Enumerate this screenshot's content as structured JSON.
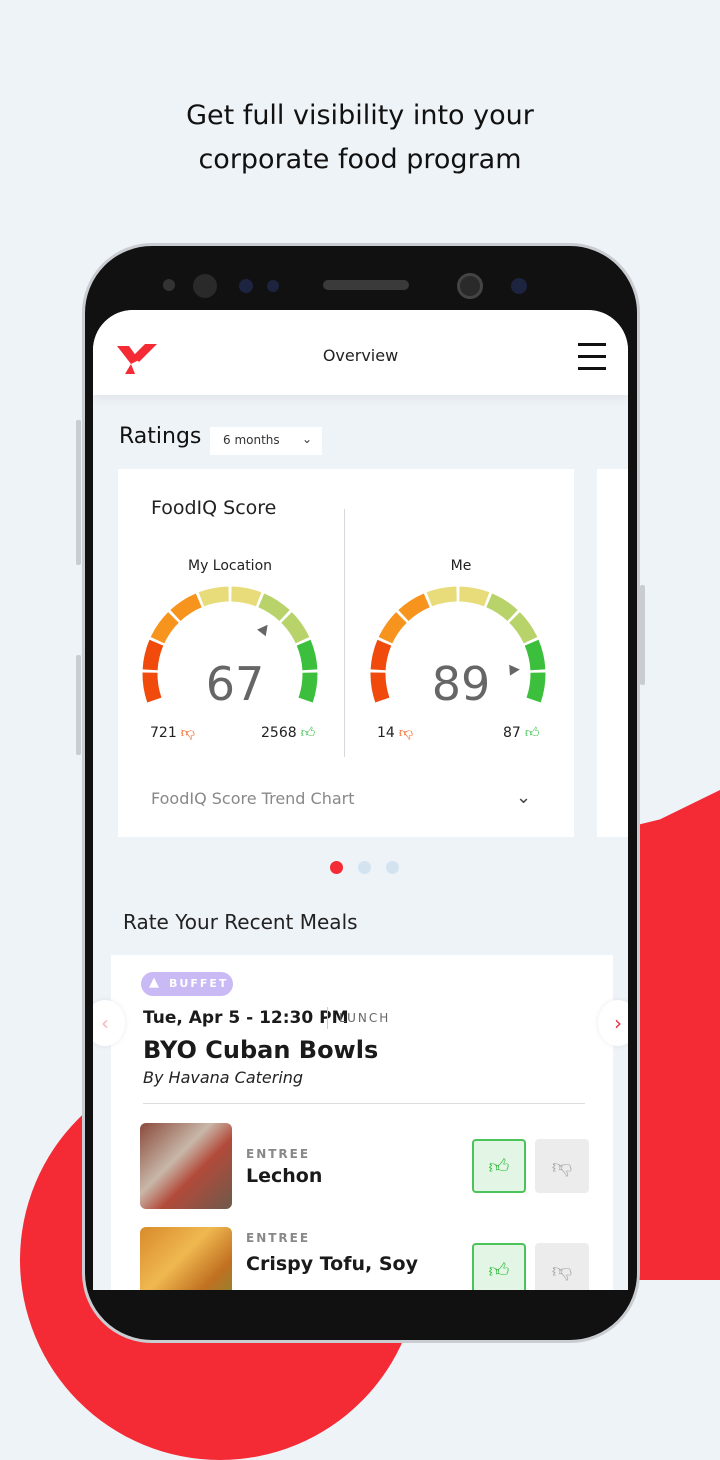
{
  "headline": [
    "Get full visibility into your",
    "corporate food program"
  ],
  "colors": {
    "brand": "#f42a35",
    "background": "#eef3f8",
    "thumb_up": "#3cbf4a",
    "thumb_down": "#f05a14",
    "badge": "#c9b9f4"
  },
  "header": {
    "title": "Overview",
    "logo": "brand-logo",
    "menu_icon": "hamburger-icon"
  },
  "ratings": {
    "title": "Ratings",
    "period": "6 months"
  },
  "score_card": {
    "title": "FoodIQ Score",
    "gauges": [
      {
        "label": "My Location",
        "score": 67,
        "down": "721",
        "up": "2568"
      },
      {
        "label": "Me",
        "score": 89,
        "down": "14",
        "up": "87"
      }
    ],
    "trend_label": "FoodIQ Score Trend Chart"
  },
  "carousel": {
    "pages": 3,
    "active": 0
  },
  "recent": {
    "title": "Rate Your Recent Meals"
  },
  "meal": {
    "badge": "BUFFET",
    "date": "Tue, Apr 5 - 12:30 PM",
    "meal_type": "LUNCH",
    "name": "BYO Cuban Bowls",
    "by": "By Havana Catering",
    "items": [
      {
        "category": "ENTREE",
        "name": "Lechon",
        "rating": "up"
      },
      {
        "category": "ENTREE",
        "name": "Crispy Tofu, Soy",
        "rating": "up"
      }
    ]
  }
}
